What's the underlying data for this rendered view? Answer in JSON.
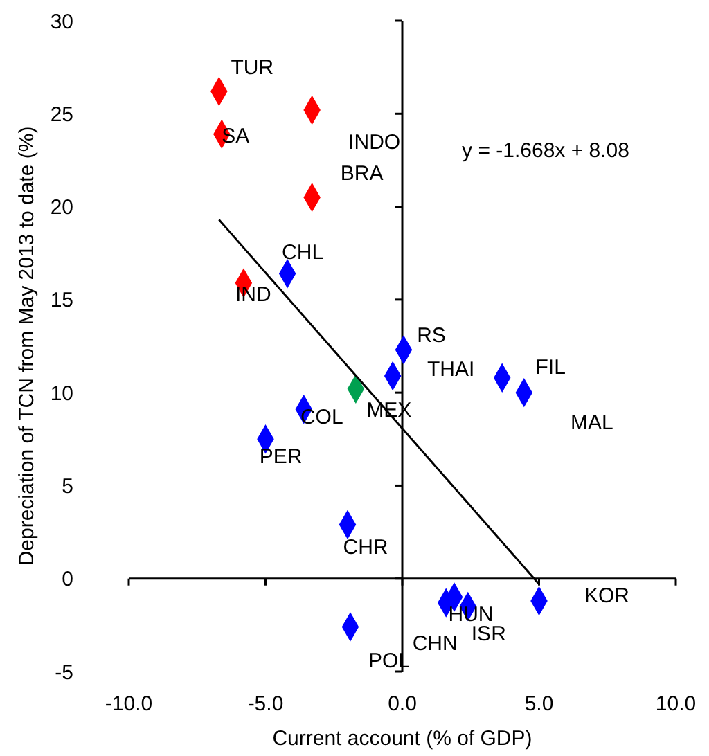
{
  "chart_data": {
    "type": "scatter",
    "xlabel": "Current account (% of GDP)",
    "ylabel": "Depreciation of TCN from May 2013 to date (%)",
    "xlim": [
      -10,
      10
    ],
    "xticks": [
      {
        "value": -10,
        "label": "-10.0"
      },
      {
        "value": -5,
        "label": "-5.0"
      },
      {
        "value": 0,
        "label": "0.0"
      },
      {
        "value": 5,
        "label": "5.0"
      },
      {
        "value": 10,
        "label": "10.0"
      }
    ],
    "ylim": [
      -5,
      30
    ],
    "yticks": [
      -5,
      0,
      5,
      10,
      15,
      20,
      25,
      30
    ],
    "marker": "diamond",
    "series": [
      {
        "color": "#ff0000",
        "x": [
          -6.7,
          -6.6,
          -3.3,
          -3.3,
          -5.8
        ],
        "values": [
          26.2,
          23.9,
          25.2,
          20.5,
          15.9
        ]
      },
      {
        "color": "#0000ff",
        "x": [
          -4.2,
          0.05,
          -0.35,
          3.65,
          4.45,
          -3.6,
          -5.0,
          -2.0,
          -1.9,
          1.6,
          1.9,
          2.4,
          5.0
        ],
        "values": [
          16.4,
          12.3,
          10.9,
          10.8,
          10.0,
          9.1,
          7.5,
          2.9,
          -2.6,
          -1.3,
          -1.0,
          -1.5,
          -1.2
        ]
      },
      {
        "color": "#00a050",
        "x": [
          -1.7
        ],
        "values": [
          10.2
        ]
      },
      {
        "type": "line",
        "color": "#000000",
        "x": [
          -6.7,
          5.0
        ],
        "values": [
          19.3,
          -0.3
        ],
        "marker": "none"
      }
    ],
    "annotations": [
      {
        "text": "TUR",
        "x": -6.7,
        "y": 26.2
      },
      {
        "text": "SA",
        "x": -6.6,
        "y": 23.9
      },
      {
        "text": "INDO",
        "x": -3.3,
        "y": 25.2
      },
      {
        "text": "BRA",
        "x": -3.3,
        "y": 20.5
      },
      {
        "text": "CHL",
        "x": -4.2,
        "y": 16.4
      },
      {
        "text": "IND",
        "x": -5.8,
        "y": 15.9
      },
      {
        "text": "RS",
        "x": 0.05,
        "y": 12.3
      },
      {
        "text": "THAI",
        "x": -0.35,
        "y": 10.9
      },
      {
        "text": "MEX",
        "x": -1.7,
        "y": 10.2
      },
      {
        "text": "COL",
        "x": -3.6,
        "y": 9.1
      },
      {
        "text": "FIL",
        "x": 3.65,
        "y": 10.8
      },
      {
        "text": "MAL",
        "x": 4.45,
        "y": 10.0
      },
      {
        "text": "PER",
        "x": -5.0,
        "y": 7.5
      },
      {
        "text": "CHR",
        "x": -2.0,
        "y": 2.9
      },
      {
        "text": "KOR",
        "x": 5.0,
        "y": -1.2
      },
      {
        "text": "HUN",
        "x": 1.9,
        "y": -1.0
      },
      {
        "text": "ISR",
        "x": 2.4,
        "y": -1.5
      },
      {
        "text": "CHN",
        "x": 1.6,
        "y": -1.3
      },
      {
        "text": "POL",
        "x": -1.9,
        "y": -2.6
      },
      "y = -1.668x + 8.08"
    ]
  }
}
